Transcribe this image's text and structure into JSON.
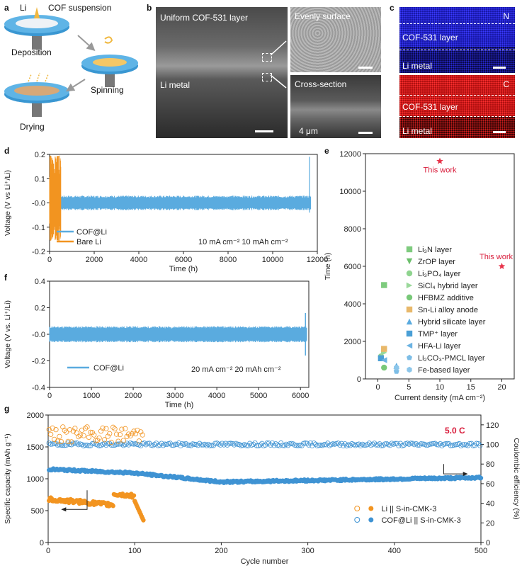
{
  "panels": {
    "a": {
      "letter": "a",
      "li": "Li",
      "suspension": "COF suspension",
      "deposition": "Deposition",
      "spinning": "Spinning",
      "drying": "Drying"
    },
    "b": {
      "letter": "b",
      "uniform": "Uniform COF-531 layer",
      "li_metal": "Li metal",
      "evenly": "Evenly surface",
      "cross": "Cross-section",
      "scale": "4 μm"
    },
    "c": {
      "letter": "c",
      "n_label": "N",
      "c_label": "C",
      "layer": "COF-531 layer",
      "li_metal": "Li metal"
    },
    "d": {
      "letter": "d"
    },
    "e": {
      "letter": "e"
    },
    "f": {
      "letter": "f"
    },
    "g": {
      "letter": "g"
    }
  },
  "chart_data": [
    {
      "id": "d",
      "type": "line",
      "xlabel": "Time (h)",
      "ylabel": "Voltage (V vs Li⁺/Li)",
      "xlim": [
        0,
        12000
      ],
      "ylim": [
        -0.2,
        0.2
      ],
      "xticks": [
        "0",
        "2000",
        "4000",
        "6000",
        "8000",
        "10000",
        "12000"
      ],
      "yticks": [
        "-0.2",
        "-0.1",
        "-0.0",
        "0.1",
        "0.2"
      ],
      "annotation": "10 mA cm⁻² 10 mAh cm⁻²",
      "series": [
        {
          "name": "COF@Li",
          "color": "#5aabdf",
          "x_range": [
            0,
            11700
          ],
          "amplitude": 0.03
        },
        {
          "name": "Bare Li",
          "color": "#f29420",
          "x_range": [
            0,
            500
          ],
          "amplitude": 0.2
        }
      ]
    },
    {
      "id": "e",
      "type": "scatter",
      "xlabel": "Current density (mA cm⁻²)",
      "ylabel": "Time (h)",
      "xlim": [
        -2,
        22
      ],
      "ylim": [
        0,
        12000
      ],
      "xticks": [
        "0",
        "5",
        "10",
        "15",
        "20"
      ],
      "yticks": [
        "0",
        "2000",
        "4000",
        "6000",
        "8000",
        "10000",
        "12000"
      ],
      "highlight": [
        {
          "label": "This work",
          "x": 10,
          "y": 11600
        },
        {
          "label": "This work",
          "x": 20,
          "y": 6000
        }
      ],
      "series": [
        {
          "name": "Li₃N layer",
          "color": "#7ecb7e",
          "points": [
            [
              1,
              5000
            ]
          ]
        },
        {
          "name": "ZrOP layer",
          "color": "#6cbf6c",
          "points": [
            [
              1,
              1500
            ]
          ]
        },
        {
          "name": "Li₃PO₄ layer",
          "color": "#8fd48f",
          "points": [
            [
              0.5,
              1200
            ]
          ]
        },
        {
          "name": "SiCl₄ hybrid layer",
          "color": "#9ad89a",
          "points": [
            [
              1,
              1400
            ]
          ]
        },
        {
          "name": "HFBMZ additive",
          "color": "#78c878",
          "points": [
            [
              1,
              600
            ]
          ]
        },
        {
          "name": "Sn-Li alloy anode",
          "color": "#e8b86a",
          "points": [
            [
              1,
              1600
            ]
          ]
        },
        {
          "name": "Hybrid silicate layer",
          "color": "#5aabdf",
          "points": [
            [
              3,
              700
            ]
          ]
        },
        {
          "name": "TMP⁺ layer",
          "color": "#4a9fd6",
          "points": [
            [
              0.5,
              1100
            ]
          ]
        },
        {
          "name": "HFA-Li layer",
          "color": "#6bb3e2",
          "points": [
            [
              1,
              1000
            ]
          ]
        },
        {
          "name": "Li₂CO₃-PMCL layer",
          "color": "#7cbde6",
          "points": [
            [
              3,
              400
            ]
          ]
        },
        {
          "name": "Fe-based layer",
          "color": "#8cc6ea",
          "points": [
            [
              3,
              600
            ]
          ]
        }
      ]
    },
    {
      "id": "f",
      "type": "line",
      "xlabel": "Time (h)",
      "ylabel": "Voltage (V vs. Li⁺/Li)",
      "xlim": [
        0,
        6200
      ],
      "ylim": [
        -0.4,
        0.4
      ],
      "xticks": [
        "0",
        "1000",
        "2000",
        "3000",
        "4000",
        "5000",
        "6000"
      ],
      "yticks": [
        "-0.4",
        "-0.2",
        "-0.0",
        "0.2",
        "0.4"
      ],
      "annotation": "20 mA cm⁻² 20 mAh cm⁻²",
      "series": [
        {
          "name": "COF@Li",
          "color": "#5aabdf",
          "x_range": [
            0,
            6150
          ],
          "amplitude": 0.06
        }
      ]
    },
    {
      "id": "g",
      "type": "scatter",
      "xlabel": "Cycle number",
      "ylabel": "Specific capacity (mAh g⁻¹)",
      "y2label": "Coulombic efficiency (%)",
      "xlim": [
        0,
        500
      ],
      "ylim": [
        0,
        2000
      ],
      "y2lim": [
        0,
        130
      ],
      "xticks": [
        "0",
        "100",
        "200",
        "300",
        "400",
        "500"
      ],
      "yticks": [
        "0",
        "500",
        "1000",
        "1500",
        "2000"
      ],
      "y2ticks": [
        "0",
        "20",
        "40",
        "60",
        "80",
        "100",
        "120"
      ],
      "annotation": "5.0 C",
      "series": [
        {
          "name": "Li || S-in-CMK-3",
          "color": "#f29420",
          "capacity_start": 700,
          "capacity_end": 350,
          "cycles": 110,
          "ce_mean": 110
        },
        {
          "name": "COF@Li || S-in-CMK-3",
          "color": "#3f93d3",
          "capacity_start": 1150,
          "capacity_end": 1020,
          "cycles": 500,
          "ce_mean": 100
        }
      ]
    }
  ]
}
